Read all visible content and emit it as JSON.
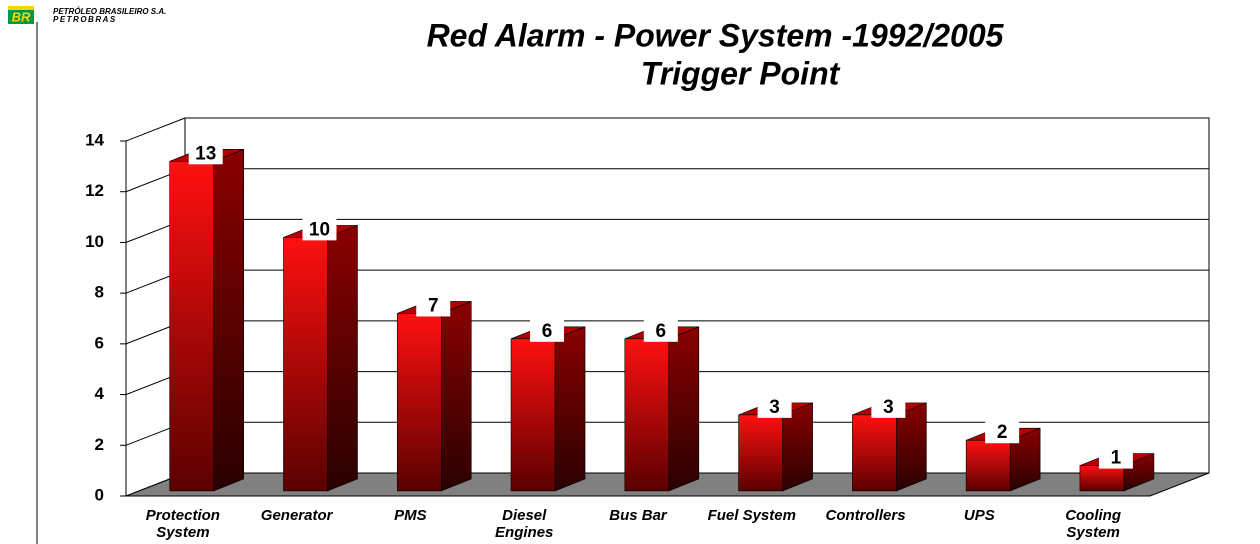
{
  "logo": {
    "mark": "BR",
    "company": "PETRÓLEO BRASILEIRO S.A.",
    "brand": "PETROBRAS"
  },
  "chart_data": {
    "type": "bar",
    "title": "Red Alarm - Power System -1992/2005",
    "subtitle": "Trigger Point",
    "categories": [
      "Protection System",
      "Generator",
      "PMS",
      "Diesel Engines",
      "Bus Bar",
      "Fuel System",
      "Controllers",
      "UPS",
      "Cooling System"
    ],
    "values": [
      13,
      10,
      7,
      6,
      6,
      3,
      3,
      2,
      1
    ],
    "color": "#ff0000",
    "ylim": [
      0,
      14
    ],
    "yticks": [
      0,
      2,
      4,
      6,
      8,
      10,
      12,
      14
    ],
    "grid": true
  }
}
